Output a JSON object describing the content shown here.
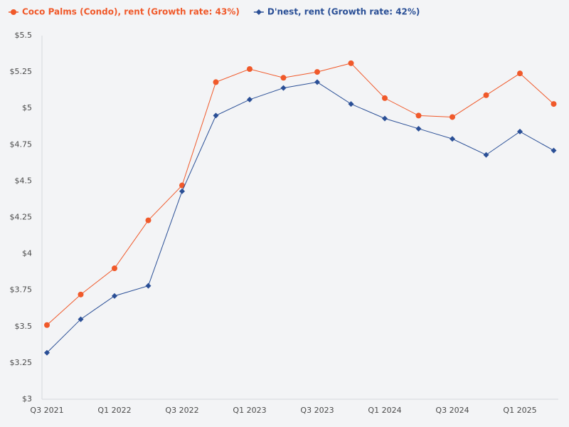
{
  "chart_data": {
    "type": "line",
    "categories": [
      "Q3 2021",
      null,
      "Q1 2022",
      null,
      "Q3 2022",
      null,
      "Q1 2023",
      null,
      "Q3 2023",
      null,
      "Q1 2024",
      null,
      "Q3 2024",
      null,
      "Q1 2025",
      null
    ],
    "series": [
      {
        "name": "Coco Palms (Condo), rent (Growth rate: 43%)",
        "color": "#f0592a",
        "marker": "circle",
        "values": [
          3.51,
          3.72,
          3.9,
          4.23,
          4.47,
          5.18,
          5.27,
          5.21,
          5.25,
          5.31,
          5.07,
          4.95,
          4.94,
          5.09,
          5.24,
          5.03
        ]
      },
      {
        "name": "D'nest, rent (Growth rate: 42%)",
        "color": "#2a4f96",
        "marker": "diamond",
        "values": [
          3.32,
          3.55,
          3.71,
          3.78,
          4.43,
          4.95,
          5.06,
          5.14,
          5.18,
          5.03,
          4.93,
          4.86,
          4.79,
          4.68,
          4.84,
          4.71
        ]
      }
    ],
    "ylim": [
      3,
      5.5
    ],
    "yticks": [
      {
        "value": 3,
        "label": "$3"
      },
      {
        "value": 3.25,
        "label": "$3.25"
      },
      {
        "value": 3.5,
        "label": "$3.5"
      },
      {
        "value": 3.75,
        "label": "$3.75"
      },
      {
        "value": 4,
        "label": "$4"
      },
      {
        "value": 4.25,
        "label": "$4.25"
      },
      {
        "value": 4.5,
        "label": "$4.5"
      },
      {
        "value": 4.75,
        "label": "$4.75"
      },
      {
        "value": 5,
        "label": "$5"
      },
      {
        "value": 5.25,
        "label": "$5.25"
      },
      {
        "value": 5.5,
        "label": "$5.5"
      }
    ],
    "grid": false,
    "legend": "top-left"
  }
}
